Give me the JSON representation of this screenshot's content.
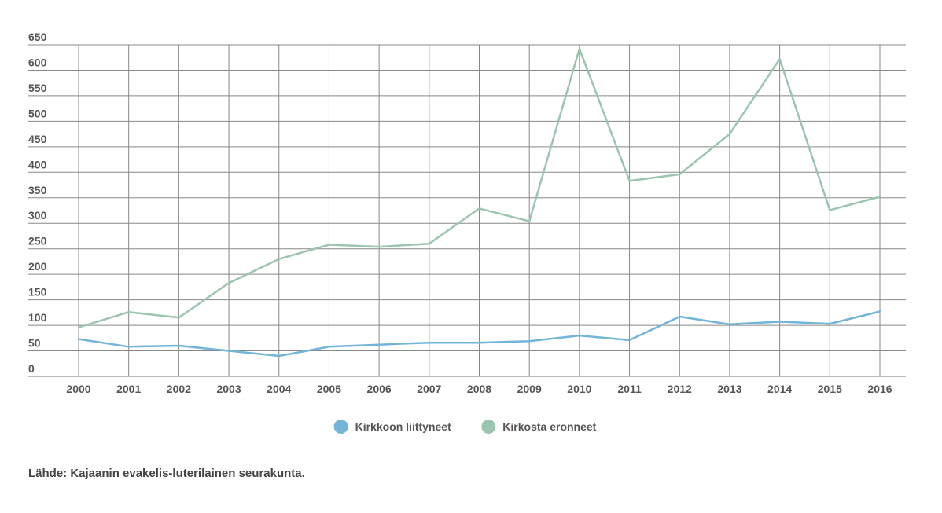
{
  "chart_data": {
    "type": "line",
    "title": "",
    "xlabel": "",
    "ylabel": "",
    "x": [
      "2000",
      "2001",
      "2002",
      "2003",
      "2004",
      "2005",
      "2006",
      "2007",
      "2008",
      "2009",
      "2010",
      "2011",
      "2012",
      "2013",
      "2014",
      "2015",
      "2016"
    ],
    "ylim": [
      0,
      650
    ],
    "yticks": [
      0,
      50,
      100,
      150,
      200,
      250,
      300,
      350,
      400,
      450,
      500,
      550,
      600,
      650
    ],
    "grid": true,
    "legend_position": "bottom-center",
    "series": [
      {
        "name": "Kirkkoon liittyneet",
        "color": "#72b5d9",
        "values": [
          73,
          58,
          60,
          50,
          40,
          58,
          62,
          66,
          66,
          69,
          80,
          71,
          117,
          102,
          107,
          103,
          127
        ]
      },
      {
        "name": "Kirkosta eronneet",
        "color": "#9cc5b0",
        "values": [
          96,
          126,
          115,
          183,
          230,
          258,
          254,
          260,
          329,
          304,
          642,
          383,
          396,
          475,
          622,
          326,
          352
        ]
      }
    ]
  },
  "source_note": "Lähde: Kajaanin evakelis-luterilainen seurakunta."
}
